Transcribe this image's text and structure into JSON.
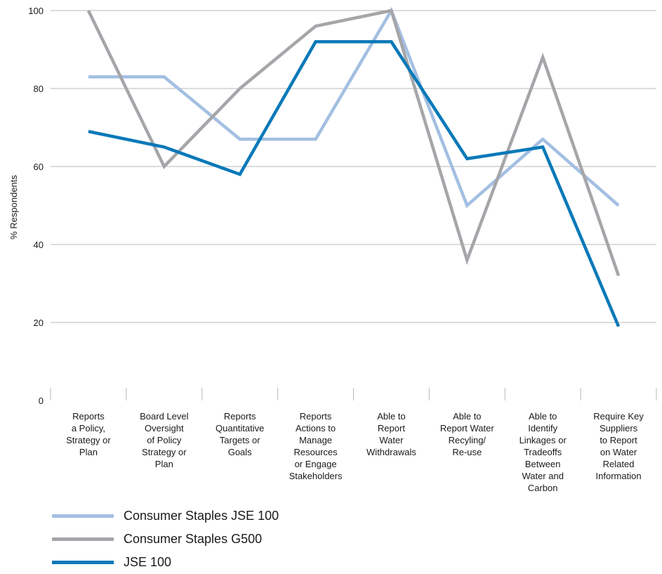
{
  "chart_data": {
    "type": "line",
    "ylabel": "% Respondents",
    "ylim": [
      0,
      100
    ],
    "yticks": [
      0,
      20,
      40,
      60,
      80,
      100
    ],
    "grid": true,
    "legend_position": "bottom-left",
    "categories": [
      "Reports a Policy, Strategy or Plan",
      "Board Level Oversight of Policy Strategy or Plan",
      "Reports Quantitative Targets or Goals",
      "Reports Actions to Manage Resources or Engage Stakeholders",
      "Able to Report Water Withdrawals",
      "Able to Report Water Recyling/ Re-use",
      "Able to Identify Linkages or Tradeoffs Between Water and Carbon",
      "Require Key Suppliers to Report on Water Related Information"
    ],
    "category_lines": [
      [
        "Reports",
        "a Policy,",
        "Strategy or",
        "Plan"
      ],
      [
        "Board Level",
        "Oversight",
        "of Policy",
        "Strategy or",
        "Plan"
      ],
      [
        "Reports",
        "Quantitative",
        "Targets or",
        "Goals"
      ],
      [
        "Reports",
        "Actions to",
        "Manage",
        "Resources",
        "or Engage",
        "Stakeholders"
      ],
      [
        "Able to",
        "Report",
        "Water",
        "Withdrawals"
      ],
      [
        "Able to",
        "Report Water",
        "Recyling/",
        "Re-use"
      ],
      [
        "Able to",
        "Identify",
        "Linkages or",
        "Tradeoffs",
        "Between",
        "Water and",
        "Carbon"
      ],
      [
        "Require Key",
        "Suppliers",
        "to Report",
        "on Water",
        "Related",
        "Information"
      ]
    ],
    "series": [
      {
        "name": "Consumer Staples JSE 100",
        "color": "#a3bfe2",
        "values": [
          83,
          83,
          67,
          67,
          100,
          50,
          67,
          50
        ]
      },
      {
        "name": "Consumer Staples G500",
        "color": "#a5a6a9",
        "values": [
          100,
          60,
          80,
          96,
          100,
          36,
          88,
          32
        ]
      },
      {
        "name": "JSE 100",
        "color": "#0a79b8",
        "values": [
          69,
          65,
          58,
          92,
          92,
          62,
          65,
          19
        ]
      }
    ]
  }
}
